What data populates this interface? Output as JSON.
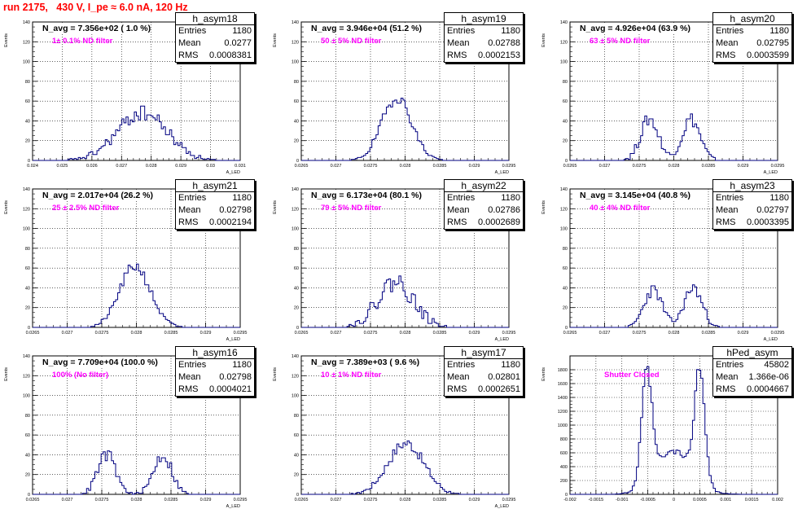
{
  "header": {
    "title": "run 2175,   430 V, I_pe ≈ 6.0 nA, 120 Hz"
  },
  "colors": {
    "title": "#ff0000",
    "histogram": "#000080",
    "filter_text": "#ff00ff"
  },
  "chart_data": [
    {
      "type": "bar",
      "name": "h_asym18",
      "stats": {
        "Entries": "1180",
        "Mean": "0.0277",
        "RMS": "0.0008381"
      },
      "navg": "N_avg = 7.356e+02 ( 1.0 %)",
      "filter_label": "1± 0.1% ND filter",
      "ylabel": "Events",
      "xlabel": "A_LED",
      "ylim": [
        0,
        140
      ],
      "xlim": [
        0.024,
        0.031
      ],
      "yticks": [
        0,
        20,
        40,
        60,
        80,
        100,
        120,
        140
      ],
      "xticks": [
        "0.024",
        "0.025",
        "0.026",
        "0.027",
        "0.028",
        "0.029",
        "0.03",
        "0.031"
      ],
      "grid": true,
      "peaks": [
        {
          "mu": 0.0277,
          "sigma": 0.00084,
          "peak": 48
        }
      ],
      "noise": 7,
      "seed": 18
    },
    {
      "type": "bar",
      "name": "h_asym19",
      "stats": {
        "Entries": "1180",
        "Mean": "0.02788",
        "RMS": "0.0002153"
      },
      "navg": "N_avg = 3.946e+04 (51.2 %)",
      "filter_label": "50 ± 5% ND filter",
      "ylabel": "Events",
      "xlabel": "A_LED",
      "ylim": [
        0,
        140
      ],
      "xlim": [
        0.0265,
        0.0295
      ],
      "yticks": [
        0,
        20,
        40,
        60,
        80,
        100,
        120,
        140
      ],
      "xticks": [
        "0.0265",
        "0.027",
        "0.0275",
        "0.028",
        "0.0285",
        "0.029",
        "0.0295"
      ],
      "grid": true,
      "peaks": [
        {
          "mu": 0.02788,
          "sigma": 0.000215,
          "peak": 64
        }
      ],
      "noise": 5,
      "seed": 19
    },
    {
      "type": "bar",
      "name": "h_asym20",
      "stats": {
        "Entries": "1180",
        "Mean": "0.02795",
        "RMS": "0.0003599"
      },
      "navg": "N_avg = 4.926e+04 (63.9 %)",
      "filter_label": "63 ± 5% ND filter",
      "ylabel": "Events",
      "xlabel": "A_LED",
      "ylim": [
        0,
        140
      ],
      "xlim": [
        0.0265,
        0.0295
      ],
      "yticks": [
        0,
        20,
        40,
        60,
        80,
        100,
        120,
        140
      ],
      "xticks": [
        "0.0265",
        "0.027",
        "0.0275",
        "0.028",
        "0.0285",
        "0.029",
        "0.0295"
      ],
      "grid": true,
      "peaks": [
        {
          "mu": 0.02765,
          "sigma": 0.00013,
          "peak": 42
        },
        {
          "mu": 0.02825,
          "sigma": 0.00013,
          "peak": 42
        }
      ],
      "noise": 6,
      "seed": 20
    },
    {
      "type": "bar",
      "name": "h_asym21",
      "stats": {
        "Entries": "1180",
        "Mean": "0.02798",
        "RMS": "0.0002194"
      },
      "navg": "N_avg = 2.017e+04 (26.2 %)",
      "filter_label": "25 ± 2.5% ND filter",
      "ylabel": "Events",
      "xlabel": "A_LED",
      "ylim": [
        0,
        140
      ],
      "xlim": [
        0.0265,
        0.0295
      ],
      "yticks": [
        0,
        20,
        40,
        60,
        80,
        100,
        120,
        140
      ],
      "xticks": [
        "0.0265",
        "0.027",
        "0.0275",
        "0.028",
        "0.0285",
        "0.029",
        "0.0295"
      ],
      "grid": true,
      "peaks": [
        {
          "mu": 0.02798,
          "sigma": 0.00022,
          "peak": 62
        }
      ],
      "noise": 5,
      "seed": 21
    },
    {
      "type": "bar",
      "name": "h_asym22",
      "stats": {
        "Entries": "1180",
        "Mean": "0.02786",
        "RMS": "0.0002689"
      },
      "navg": "N_avg = 6.173e+04 (80.1 %)",
      "filter_label": "79 ± 5% ND filter",
      "ylabel": "Events",
      "xlabel": "A_LED",
      "ylim": [
        0,
        140
      ],
      "xlim": [
        0.0265,
        0.0295
      ],
      "yticks": [
        0,
        20,
        40,
        60,
        80,
        100,
        120,
        140
      ],
      "xticks": [
        "0.0265",
        "0.027",
        "0.0275",
        "0.028",
        "0.0285",
        "0.029",
        "0.0295"
      ],
      "grid": true,
      "peaks": [
        {
          "mu": 0.02786,
          "sigma": 0.00026,
          "peak": 46
        }
      ],
      "noise": 9,
      "seed": 22
    },
    {
      "type": "bar",
      "name": "h_asym23",
      "stats": {
        "Entries": "1180",
        "Mean": "0.02797",
        "RMS": "0.0003395"
      },
      "navg": "N_avg = 3.145e+04 (40.8 %)",
      "filter_label": "40 ± 4% ND filter",
      "ylabel": "Events",
      "xlabel": "A_LED",
      "ylim": [
        0,
        140
      ],
      "xlim": [
        0.0265,
        0.0295
      ],
      "yticks": [
        0,
        20,
        40,
        60,
        80,
        100,
        120,
        140
      ],
      "xticks": [
        "0.0265",
        "0.027",
        "0.0275",
        "0.028",
        "0.0285",
        "0.029",
        "0.0295"
      ],
      "grid": true,
      "peaks": [
        {
          "mu": 0.0277,
          "sigma": 0.00013,
          "peak": 38
        },
        {
          "mu": 0.02828,
          "sigma": 0.00013,
          "peak": 40
        }
      ],
      "noise": 5,
      "seed": 23
    },
    {
      "type": "bar",
      "name": "h_asym16",
      "stats": {
        "Entries": "1180",
        "Mean": "0.02798",
        "RMS": "0.0004021"
      },
      "navg": "N_avg = 7.709e+04 (100.0 %)",
      "filter_label": "100% (No filter)",
      "ylabel": "Events",
      "xlabel": "A_LED",
      "ylim": [
        0,
        140
      ],
      "xlim": [
        0.0265,
        0.0295
      ],
      "yticks": [
        0,
        20,
        40,
        60,
        80,
        100,
        120,
        140
      ],
      "xticks": [
        "0.0265",
        "0.027",
        "0.0275",
        "0.028",
        "0.0285",
        "0.029",
        "0.0295"
      ],
      "grid": true,
      "peaks": [
        {
          "mu": 0.02757,
          "sigma": 0.00013,
          "peak": 40
        },
        {
          "mu": 0.02838,
          "sigma": 0.00013,
          "peak": 40
        }
      ],
      "noise": 6,
      "seed": 16
    },
    {
      "type": "bar",
      "name": "h_asym17",
      "stats": {
        "Entries": "1180",
        "Mean": "0.02801",
        "RMS": "0.0002651"
      },
      "navg": "N_avg = 7.389e+03 ( 9.6 %)",
      "filter_label": "10 ± 1% ND filter",
      "ylabel": "Events",
      "xlabel": "A_LED",
      "ylim": [
        0,
        140
      ],
      "xlim": [
        0.0265,
        0.0295
      ],
      "yticks": [
        0,
        20,
        40,
        60,
        80,
        100,
        120,
        140
      ],
      "xticks": [
        "0.0265",
        "0.027",
        "0.0275",
        "0.028",
        "0.0285",
        "0.029",
        "0.0295"
      ],
      "grid": true,
      "peaks": [
        {
          "mu": 0.02801,
          "sigma": 0.00026,
          "peak": 52
        }
      ],
      "noise": 5,
      "seed": 17
    },
    {
      "type": "bar",
      "name": "hPed_asym",
      "stats": {
        "Entries": "45802",
        "Mean": "1.366e-06",
        "RMS": "0.0004667"
      },
      "navg": "",
      "filter_label": "Shutter Closed",
      "ylabel": "Events",
      "xlabel": "",
      "ylim": [
        0,
        2000
      ],
      "xlim": [
        -0.002,
        0.002
      ],
      "yticks": [
        0,
        200,
        400,
        600,
        800,
        1000,
        1200,
        1400,
        1600,
        1800
      ],
      "xticks": [
        "-0.002",
        "-0.0015",
        "-0.001",
        "-0.0005",
        "0",
        "0.0005",
        "0.001",
        "0.0015",
        "0.002"
      ],
      "grid": true,
      "peaks": [
        {
          "mu": -0.00052,
          "sigma": 0.0001,
          "peak": 1600
        },
        {
          "mu": 0.0005,
          "sigma": 0.0001,
          "peak": 1600
        },
        {
          "mu": 0.0,
          "sigma": 0.00035,
          "peak": 620
        }
      ],
      "noise": 60,
      "seed": 99
    }
  ]
}
